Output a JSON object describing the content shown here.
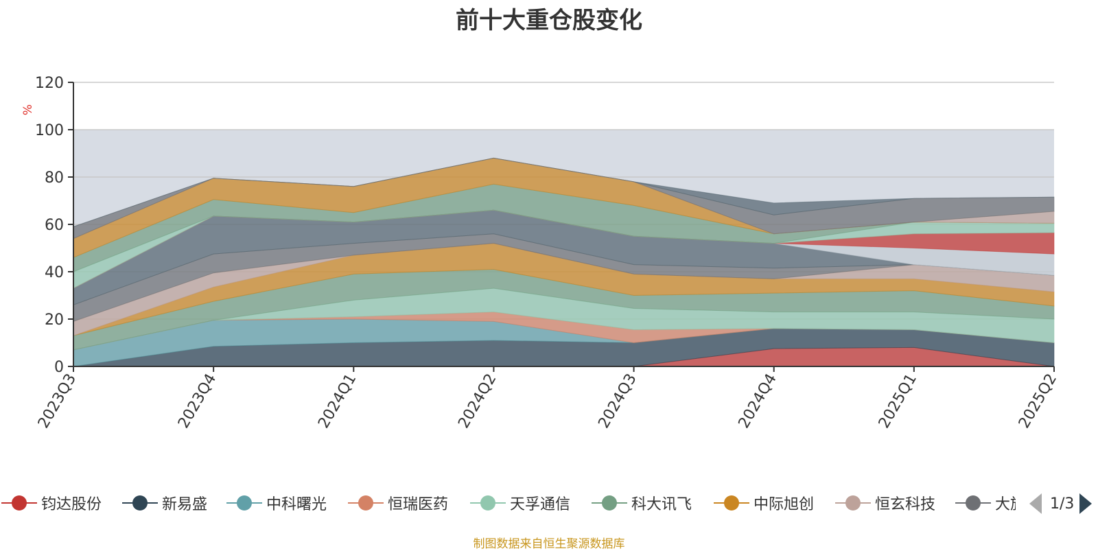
{
  "chart_data": {
    "type": "area",
    "stacked": true,
    "title": "前十大重仓股变化",
    "ylabel": "%",
    "ylim": [
      0,
      120
    ],
    "yticks": [
      0,
      20,
      40,
      60,
      80,
      100,
      120
    ],
    "shaded_band": [
      0,
      100
    ],
    "grid": true,
    "legend_position": "bottom",
    "categories": [
      "2023Q3",
      "2023Q4",
      "2024Q1",
      "2024Q2",
      "2024Q3",
      "2024Q4",
      "2025Q1",
      "2025Q2"
    ],
    "series": [
      {
        "name": "钧达股份",
        "color": "#c23531",
        "values": [
          0,
          0,
          0,
          0,
          0,
          7.5,
          8,
          0
        ]
      },
      {
        "name": "新易盛",
        "color": "#2f4554",
        "values": [
          0,
          8.5,
          10,
          11,
          10,
          8.5,
          7.5,
          10
        ]
      },
      {
        "name": "中科曙光",
        "color": "#61a0a8",
        "values": [
          7,
          11,
          10,
          8,
          0,
          0,
          0,
          0
        ]
      },
      {
        "name": "恒瑞医药",
        "color": "#d48265",
        "values": [
          0,
          0,
          1,
          4,
          5.5,
          0,
          0,
          0
        ]
      },
      {
        "name": "天孚通信",
        "color": "#91c7ae",
        "values": [
          0,
          0,
          7,
          10,
          9,
          7,
          7.5,
          10
        ]
      },
      {
        "name": "科大讯飞",
        "color": "#749f83",
        "values": [
          6,
          8,
          11,
          8,
          5.5,
          8,
          9,
          5.5
        ]
      },
      {
        "name": "中际旭创",
        "color": "#ca8622",
        "values": [
          0,
          6,
          8,
          11,
          9,
          6,
          5,
          6
        ]
      },
      {
        "name": "恒玄科技",
        "color": "#bda29a",
        "values": [
          6,
          6,
          0,
          0,
          0,
          0,
          6,
          7
        ]
      },
      {
        "name": "大族激光",
        "color": "#6e7074",
        "values": [
          7,
          8,
          5,
          4,
          4,
          4.5,
          0,
          0
        ]
      },
      {
        "name": "",
        "color": "#546570",
        "values": [
          7,
          16,
          9,
          10,
          12,
          10.5,
          0,
          0
        ]
      },
      {
        "name": "",
        "color": "#c4ccd3",
        "values": [
          0,
          0,
          0,
          0,
          0,
          0,
          7,
          9
        ]
      },
      {
        "name": "",
        "color": "#c23531",
        "values": [
          0,
          0,
          0,
          0,
          0,
          0,
          6,
          9
        ]
      },
      {
        "name": "",
        "color": "#91c7ae",
        "values": [
          7,
          0,
          0,
          0,
          0,
          0,
          5,
          4
        ]
      },
      {
        "name": "",
        "color": "#749f83",
        "values": [
          6,
          7,
          4,
          11,
          13,
          4,
          0,
          0
        ]
      },
      {
        "name": "",
        "color": "#ca8622",
        "values": [
          8,
          9,
          11,
          11,
          10,
          0,
          0,
          0
        ]
      },
      {
        "name": "",
        "color": "#bda29a",
        "values": [
          0,
          0,
          0,
          0,
          0,
          0,
          0,
          5
        ]
      },
      {
        "name": "",
        "color": "#6e7074",
        "values": [
          5,
          0,
          0,
          0,
          0,
          8,
          10,
          6
        ]
      },
      {
        "name": "",
        "color": "#546570",
        "values": [
          0,
          0,
          0,
          0,
          0,
          5,
          0,
          0
        ]
      }
    ]
  },
  "legend": {
    "items": [
      {
        "label": "钧达股份",
        "color": "#c23531"
      },
      {
        "label": "新易盛",
        "color": "#2f4554"
      },
      {
        "label": "中科曙光",
        "color": "#61a0a8"
      },
      {
        "label": "恒瑞医药",
        "color": "#d48265"
      },
      {
        "label": "天孚通信",
        "color": "#91c7ae"
      },
      {
        "label": "科大讯飞",
        "color": "#749f83"
      },
      {
        "label": "中际旭创",
        "color": "#ca8622"
      },
      {
        "label": "恒玄科技",
        "color": "#bda29a"
      },
      {
        "label": "大族激光",
        "color": "#6e7074"
      }
    ],
    "pager": {
      "text": "1/3"
    }
  },
  "source_note": "制图数据来自恒生聚源数据库"
}
